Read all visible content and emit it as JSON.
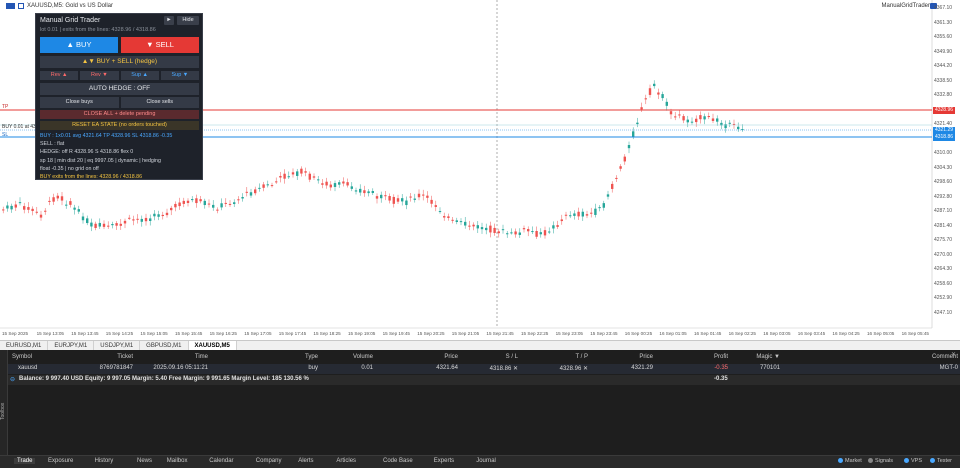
{
  "header": {
    "chart_title": "XAUUSD,M5:  Gold vs US Dollar",
    "ea_name": "ManualGridTrader"
  },
  "panel": {
    "title": "Manual Grid Trader",
    "arrow_label": "►",
    "hide_label": "Hide",
    "subtitle": "lot 0.01  |  exits from the lines: 4328.96 / 4318.86",
    "buy_label": "▲  BUY",
    "sell_label": "▼  SELL",
    "hedge_label": "▲▼  BUY + SELL  (hedge)",
    "mini_buttons": [
      "Rev ▲",
      "Rev ▼",
      "Sup ▲",
      "Sup ▼"
    ],
    "auto_hedge_label": "AUTO HEDGE : OFF",
    "close_buys_label": "Close buys",
    "close_sells_label": "Close sells",
    "close_all_label": "CLOSE ALL  +  delete pending",
    "reset_label": "RESET EA STATE  (no orders touched)",
    "info_lines": [
      {
        "text": "BUY : 1x0.01  avg 4321.64  TP 4328.96  SL 4318.86  -0.35",
        "color": "#4aa8ff"
      },
      {
        "text": "SELL : flat",
        "color": "#cfd3da"
      },
      {
        "text": "HEDGE: off  R 4328.96  S 4318.86  flex 0",
        "color": "#cfd3da"
      },
      {
        "text": "sp 18  |  min dist 20  |  eq 9997.05  |  dynamic  |  hedging",
        "color": "#cfd3da"
      },
      {
        "text": "float -0.35  |  no grid on  off",
        "color": "#cfd3da"
      },
      {
        "text": "BUY exits from the lines: 4328.96 / 4318.86",
        "color": "#f5c542"
      }
    ]
  },
  "colors": {
    "bull": "#26a69a",
    "bear": "#ef5350",
    "resistance": "#e53935",
    "support": "#1e88e5",
    "panel_bg": "#1e222a",
    "toolbox_bg": "#1e1e1e"
  },
  "price_axis": {
    "ticks": [
      "4367.10",
      "4361.30",
      "4355.60",
      "4349.90",
      "4344.20",
      "4338.50",
      "4332.80",
      "4327.10",
      "4321.40",
      "4315.70",
      "4310.00",
      "4304.30",
      "4298.60",
      "4292.80",
      "4287.10",
      "4281.40",
      "4275.70",
      "4270.00",
      "4264.30",
      "4258.60",
      "4252.90",
      "4247.10"
    ],
    "badges": [
      {
        "text": "4328.96",
        "color": "#e53935"
      },
      {
        "text": "4321.29",
        "color": "#1e88e5"
      },
      {
        "text": "4318.86",
        "color": "#1e88e5"
      }
    ]
  },
  "line_tags": {
    "resistance": "TP",
    "buy_line": "BUY 0.01 at 4321.64",
    "support": "SL"
  },
  "time_axis": [
    "15 Sep 2025",
    "15 Sep 13:05",
    "15 Sep 13:45",
    "15 Sep 14:25",
    "15 Sep 15:05",
    "15 Sep 15:45",
    "15 Sep 16:25",
    "15 Sep 17:05",
    "15 Sep 17:45",
    "15 Sep 18:25",
    "15 Sep 19:05",
    "15 Sep 19:45",
    "15 Sep 20:25",
    "15 Sep 21:05",
    "15 Sep 21:45",
    "15 Sep 22:25",
    "15 Sep 23:05",
    "15 Sep 23:45",
    "16 Sep 00:25",
    "16 Sep 01:05",
    "16 Sep 01:45",
    "16 Sep 02:25",
    "16 Sep 03:05",
    "16 Sep 03:45",
    "16 Sep 04:25",
    "16 Sep 05:05",
    "16 Sep 05:45"
  ],
  "symbol_tabs": [
    "EURUSD,M1",
    "EURJPY,M1",
    "USDJPY,M1",
    "GBPUSD,M1",
    "XAUUSD,M5"
  ],
  "toolbox": {
    "side_title": "Toolbox",
    "columns": [
      "Symbol",
      "Ticket",
      "Time",
      "Type",
      "Volume",
      "Price",
      "S / L",
      "T / P",
      "Price",
      "Profit",
      "Magic ▼",
      "Comment"
    ],
    "position": {
      "symbol": "xauusd",
      "ticket": "8769781847",
      "time": "2025.09.16 05:11:21",
      "type": "buy",
      "volume": "0.01",
      "price": "4321.64",
      "sl": "4318.86",
      "tp": "4328.96",
      "current": "4321.29",
      "profit": "-0.35",
      "magic": "770101",
      "comment": "MGT-0"
    },
    "summary": "Balance: 9 997.40 USD  Equity: 9 997.05  Margin: 5.40  Free Margin: 9 991.65  Margin Level: 185 130.56 %",
    "summary_profit": "-0.35"
  },
  "bottom_tabs": [
    "Trade",
    "Exposure",
    "History",
    "News",
    "Mailbox",
    "Calendar",
    "Company",
    "Alerts",
    "Articles",
    "Code Base",
    "Experts",
    "Journal"
  ],
  "status": {
    "market": "Market",
    "signals": "Signals",
    "vps": "VPS",
    "tester": "Tester"
  }
}
